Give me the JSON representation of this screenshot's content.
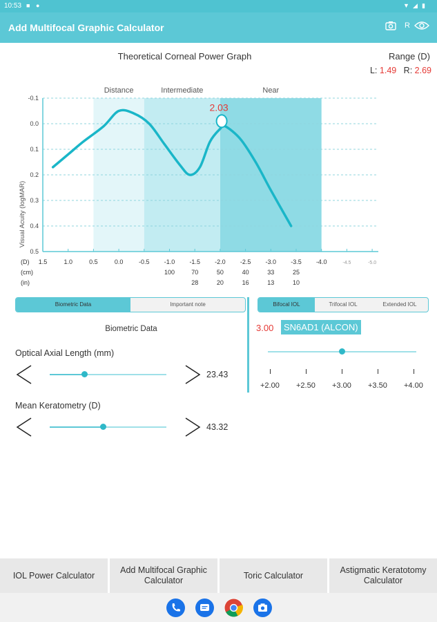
{
  "status": {
    "time": "10:53"
  },
  "appbar": {
    "title": "Add Multifocal Graphic Calculator",
    "r_label": "R",
    "icons": [
      "camera-icon",
      "eye-icon"
    ]
  },
  "graph": {
    "title": "Theoretical Corneal Power Graph",
    "range_label": "Range (D)",
    "left_prefix": "L:",
    "left_value": "1.49",
    "right_prefix": "R:",
    "right_value": "2.69",
    "peak_label": "2.03",
    "zones": [
      "Distance",
      "Intermediate",
      "Near"
    ],
    "ylabel": "Visual Acuity (logMAR)"
  },
  "chart_data": {
    "type": "line",
    "title": "Theoretical Corneal Power Graph",
    "ylabel": "Visual Acuity (logMAR)",
    "ylim": [
      -0.1,
      0.5
    ],
    "y_inverted": true,
    "yticks": [
      "-0.1",
      "0.0",
      "0.1",
      "0.2",
      "0.3",
      "0.4",
      "0.5"
    ],
    "x_ticks_D": [
      "1.5",
      "1.0",
      "0.5",
      "0.0",
      "-0.5",
      "-1.0",
      "-1.5",
      "-2.0",
      "-2.5",
      "-3.0",
      "-3.5",
      "-4.0",
      "-4.5",
      "-5.0"
    ],
    "x_ticks_cm": [
      "",
      "",
      "",
      "",
      "",
      "100",
      "70",
      "50",
      "40",
      "33",
      "25",
      "",
      "",
      ""
    ],
    "x_ticks_in": [
      "",
      "",
      "",
      "",
      "",
      "",
      "28",
      "20",
      "16",
      "13",
      "10",
      "",
      "",
      ""
    ],
    "x_axis_units": [
      "(D)",
      "(cm)",
      "(in)"
    ],
    "zones": [
      {
        "name": "Distance",
        "from": 0.5,
        "to": -0.5
      },
      {
        "name": "Intermediate",
        "from": -0.5,
        "to": -2.0
      },
      {
        "name": "Near",
        "from": -2.0,
        "to": -4.0
      }
    ],
    "series": [
      {
        "x": [
          1.3,
          1.0,
          0.7,
          0.3,
          0.0,
          -0.3,
          -0.6,
          -0.9,
          -1.2,
          -1.4,
          -1.6,
          -1.8,
          -2.0,
          -2.1,
          -2.4,
          -2.7,
          -3.0,
          -3.4
        ],
        "y": [
          0.17,
          0.12,
          0.07,
          0.01,
          -0.05,
          -0.04,
          0.0,
          0.08,
          0.16,
          0.2,
          0.17,
          0.07,
          0.02,
          0.01,
          0.06,
          0.15,
          0.26,
          0.4
        ]
      }
    ],
    "marker": {
      "x": -2.03,
      "y": -0.01,
      "label": "2.03"
    },
    "grid": true
  },
  "left_panel": {
    "tabs": [
      "Biometric Data",
      "Important note"
    ],
    "section_title": "Biometric Data",
    "axial_label": "Optical Axial Length (mm)",
    "axial_value": "23.43",
    "axial_fraction": 0.3,
    "kerato_label": "Mean Keratometry (D)",
    "kerato_value": "43.32",
    "kerato_fraction": 0.46
  },
  "right_panel": {
    "tabs": [
      "Bifocal IOL",
      "Trifocal IOL",
      "Extended IOL"
    ],
    "add_value": "3.00",
    "iol_name": "SN6AD1 (ALCON)",
    "add_fraction": 0.5,
    "ticks": [
      "+2.00",
      "+2.50",
      "+3.00",
      "+3.50",
      "+4.00"
    ]
  },
  "bottom_nav": [
    "IOL Power Calculator",
    "Add Multifocal Graphic Calculator",
    "Toric Calculator",
    "Astigmatic Keratotomy Calculator"
  ],
  "dock_icons": [
    "phone-icon",
    "messages-icon",
    "chrome-icon",
    "camera-app-icon"
  ]
}
